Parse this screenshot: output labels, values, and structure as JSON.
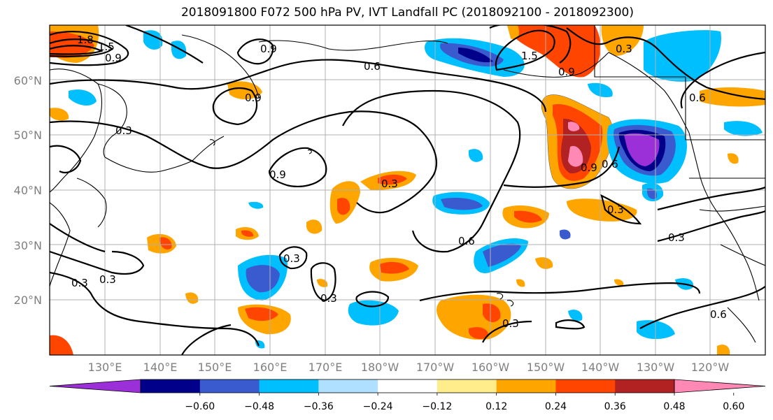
{
  "title": "2018091800 F072 500 hPa PV, IVT Landfall PC (2018092100 - 2018092300)",
  "lat_ticks": [
    "60°N",
    "50°N",
    "40°N",
    "30°N",
    "20°N"
  ],
  "lon_ticks": [
    "130°E",
    "140°E",
    "150°E",
    "160°E",
    "170°E",
    "180°W",
    "170°W",
    "160°W",
    "150°W",
    "140°W",
    "130°W",
    "120°W"
  ],
  "colorbar": {
    "colors": [
      "#9b30d8",
      "#00008b",
      "#3a5bd0",
      "#00bfff",
      "#b0e0ff",
      "#ffffff",
      "#ffec8b",
      "#ffa500",
      "#ff4500",
      "#b22222",
      "#ff88b4"
    ],
    "labels": [
      "−0.60",
      "−0.48",
      "−0.36",
      "−0.24",
      "−0.12",
      "0.12",
      "0.24",
      "0.36",
      "0.48",
      "0.60"
    ]
  },
  "contour_labels": [
    "1.8",
    "1.5",
    "0.9",
    "0.9",
    "0.6",
    "0.9",
    "1.5",
    "0.9",
    "0.3",
    "0.6",
    "0.3",
    "0.9",
    "0.9",
    "0.6",
    "0.3",
    "0.3",
    "0.6",
    "0.3",
    "0.3",
    "0.3",
    "0.3",
    "0.3",
    "0.3",
    "0.6"
  ],
  "shade_levels": {
    "neg_060": "#9b30d8",
    "neg_048": "#00008b",
    "neg_036": "#3a5bd0",
    "neg_024": "#00bfff",
    "neg_012": "#b0e0ff",
    "pos_012": "#ffec8b",
    "pos_024": "#ffa500",
    "pos_036": "#ff4500",
    "pos_048": "#b22222",
    "pos_060": "#ff88b4"
  }
}
